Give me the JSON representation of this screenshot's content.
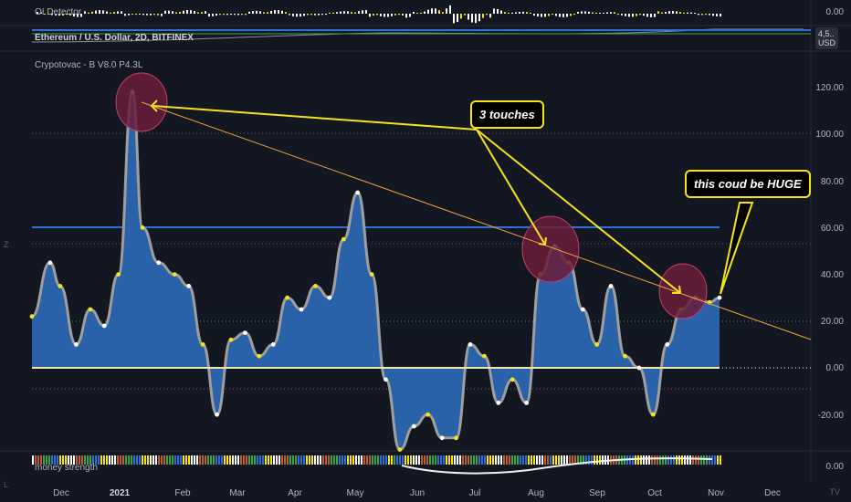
{
  "top_pane": {
    "indicator": "OI Detector",
    "value": "0.00"
  },
  "symbol_pane": {
    "title": "Ethereum / U.S. Dollar, 2D, BITFINEX",
    "price": "4,5..",
    "currency": "USD"
  },
  "main_pane": {
    "indicator": "Crypotovac - B V8.0 P4.3L",
    "y_ticks": [
      "120.00",
      "100.00",
      "80.00",
      "60.00",
      "40.00",
      "20.00",
      "0.00",
      "-20.00"
    ],
    "callouts": {
      "touches": "3 touches",
      "huge": "this coud be HUGE"
    }
  },
  "bottom_pane": {
    "indicator": "money strength",
    "value": "0.00"
  },
  "x_axis": [
    "Dec",
    "2021",
    "Feb",
    "Mar",
    "Apr",
    "May",
    "Jun",
    "Jul",
    "Aug",
    "Sep",
    "Oct",
    "Nov",
    "Dec"
  ],
  "corner_left_top": "Z",
  "corner_left_bottom": "L",
  "corner_right_bottom": "TV",
  "colors": {
    "background": "#131722",
    "fill": "#2962a8",
    "outline": "#9e9e9e",
    "trendline": "#f5e41a",
    "orange": "#f0a040",
    "blue_line": "#2f6fd6",
    "highlight": "#6b1d3a"
  },
  "chart_data": {
    "type": "area",
    "ylim": [
      -35,
      130
    ],
    "reference_lines": [
      60,
      20,
      0,
      -10
    ],
    "x": [
      "2020-11-26",
      "2020-12-05",
      "2020-12-10",
      "2020-12-18",
      "2020-12-25",
      "2021-01-01",
      "2021-01-08",
      "2021-01-15",
      "2021-01-20",
      "2021-01-28",
      "2021-02-05",
      "2021-02-12",
      "2021-02-19",
      "2021-02-26",
      "2021-03-05",
      "2021-03-12",
      "2021-03-19",
      "2021-03-26",
      "2021-04-02",
      "2021-04-09",
      "2021-04-16",
      "2021-04-23",
      "2021-04-30",
      "2021-05-07",
      "2021-05-14",
      "2021-05-21",
      "2021-05-28",
      "2021-06-04",
      "2021-06-11",
      "2021-06-18",
      "2021-06-25",
      "2021-07-02",
      "2021-07-09",
      "2021-07-16",
      "2021-07-23",
      "2021-07-30",
      "2021-08-06",
      "2021-08-13",
      "2021-08-20",
      "2021-08-27",
      "2021-09-03",
      "2021-09-10",
      "2021-09-17",
      "2021-09-24",
      "2021-10-01",
      "2021-10-08",
      "2021-10-15",
      "2021-10-22",
      "2021-10-29",
      "2021-11-03"
    ],
    "y": [
      22,
      45,
      35,
      10,
      25,
      18,
      40,
      118,
      60,
      45,
      40,
      35,
      10,
      -20,
      12,
      15,
      5,
      10,
      30,
      25,
      35,
      30,
      55,
      75,
      40,
      -5,
      -35,
      -25,
      -20,
      -30,
      -30,
      10,
      5,
      -15,
      -5,
      -15,
      40,
      52,
      45,
      25,
      10,
      35,
      5,
      0,
      -20,
      10,
      25,
      30,
      28,
      30
    ]
  }
}
